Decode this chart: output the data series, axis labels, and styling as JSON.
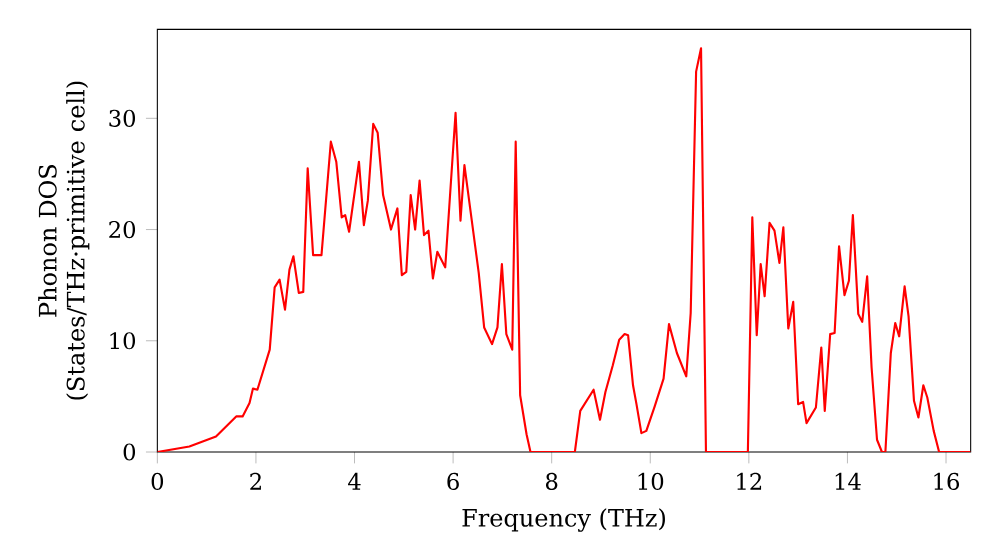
{
  "chart_data": {
    "type": "line",
    "xlabel": "Frequency (THz)",
    "ylabel": "Phonon DOS (States/THz·primitive cell)",
    "xlim": [
      0,
      16.5
    ],
    "ylim": [
      0,
      38
    ],
    "xticks": [
      0,
      2,
      4,
      6,
      8,
      10,
      12,
      14,
      16
    ],
    "yticks": [
      0,
      10,
      20,
      30
    ],
    "grid": false,
    "marker": "none",
    "line_style": "solid",
    "series": [
      {
        "color": "#ff0000",
        "x": [
          0,
          0.65,
          1.19,
          1.6,
          1.73,
          1.87,
          1.94,
          2.03,
          2.28,
          2.38,
          2.48,
          2.59,
          2.68,
          2.76,
          2.87,
          2.96,
          3.05,
          3.16,
          3.33,
          3.52,
          3.63,
          3.74,
          3.81,
          3.89,
          4.09,
          4.19,
          4.27,
          4.38,
          4.47,
          4.58,
          4.74,
          4.87,
          4.96,
          5.05,
          5.14,
          5.23,
          5.32,
          5.41,
          5.5,
          5.59,
          5.68,
          5.84,
          6.05,
          6.15,
          6.23,
          6.52,
          6.63,
          6.79,
          6.9,
          6.99,
          7.08,
          7.2,
          7.27,
          7.36,
          7.49,
          7.57,
          8.47,
          8.58,
          8.85,
          8.98,
          9.09,
          9.24,
          9.37,
          9.48,
          9.55,
          9.65,
          9.72,
          9.82,
          9.92,
          10.09,
          10.27,
          10.38,
          10.54,
          10.73,
          10.82,
          10.93,
          11.03,
          11.13,
          11.98,
          12.07,
          12.16,
          12.24,
          12.32,
          12.42,
          12.52,
          12.62,
          12.7,
          12.8,
          12.9,
          13.0,
          13.1,
          13.17,
          13.36,
          13.47,
          13.54,
          13.65,
          13.74,
          13.83,
          13.94,
          14.03,
          14.11,
          14.22,
          14.3,
          14.4,
          14.49,
          14.6,
          14.7,
          14.77,
          14.88,
          14.97,
          15.05,
          15.16,
          15.24,
          15.35,
          15.44,
          15.54,
          15.62,
          15.75,
          15.86,
          16.5
        ],
        "values": [
          0,
          0.5,
          1.4,
          3.2,
          3.2,
          4.4,
          5.7,
          5.6,
          9.2,
          14.8,
          15.5,
          12.8,
          16.4,
          17.6,
          14.3,
          14.4,
          25.5,
          17.7,
          17.7,
          27.9,
          26.1,
          21.1,
          21.3,
          19.8,
          26.1,
          20.4,
          22.6,
          29.5,
          28.7,
          23.1,
          20,
          21.9,
          15.9,
          16.2,
          23.1,
          20,
          24.4,
          19.5,
          19.9,
          15.6,
          18,
          16.6,
          30.5,
          20.8,
          25.8,
          16.1,
          11.2,
          9.7,
          11.2,
          16.9,
          10.6,
          9.2,
          27.9,
          5.1,
          1.6,
          0,
          0,
          3.7,
          5.6,
          2.9,
          5.4,
          7.8,
          10.1,
          10.6,
          10.5,
          6,
          4.3,
          1.7,
          1.9,
          4.1,
          6.6,
          11.5,
          8.9,
          6.8,
          12.5,
          34.2,
          36.3,
          0,
          0,
          21.1,
          10.5,
          16.9,
          14,
          20.6,
          19.9,
          17,
          20.2,
          11.1,
          13.5,
          4.3,
          4.5,
          2.6,
          4,
          9.4,
          3.7,
          10.6,
          10.7,
          18.5,
          14.1,
          15.4,
          21.3,
          12.4,
          11.7,
          15.8,
          7.6,
          1.1,
          0,
          0,
          8.9,
          11.6,
          10.4,
          14.9,
          12.2,
          4.6,
          3.1,
          6,
          4.9,
          1.9,
          0,
          0
        ]
      }
    ]
  }
}
